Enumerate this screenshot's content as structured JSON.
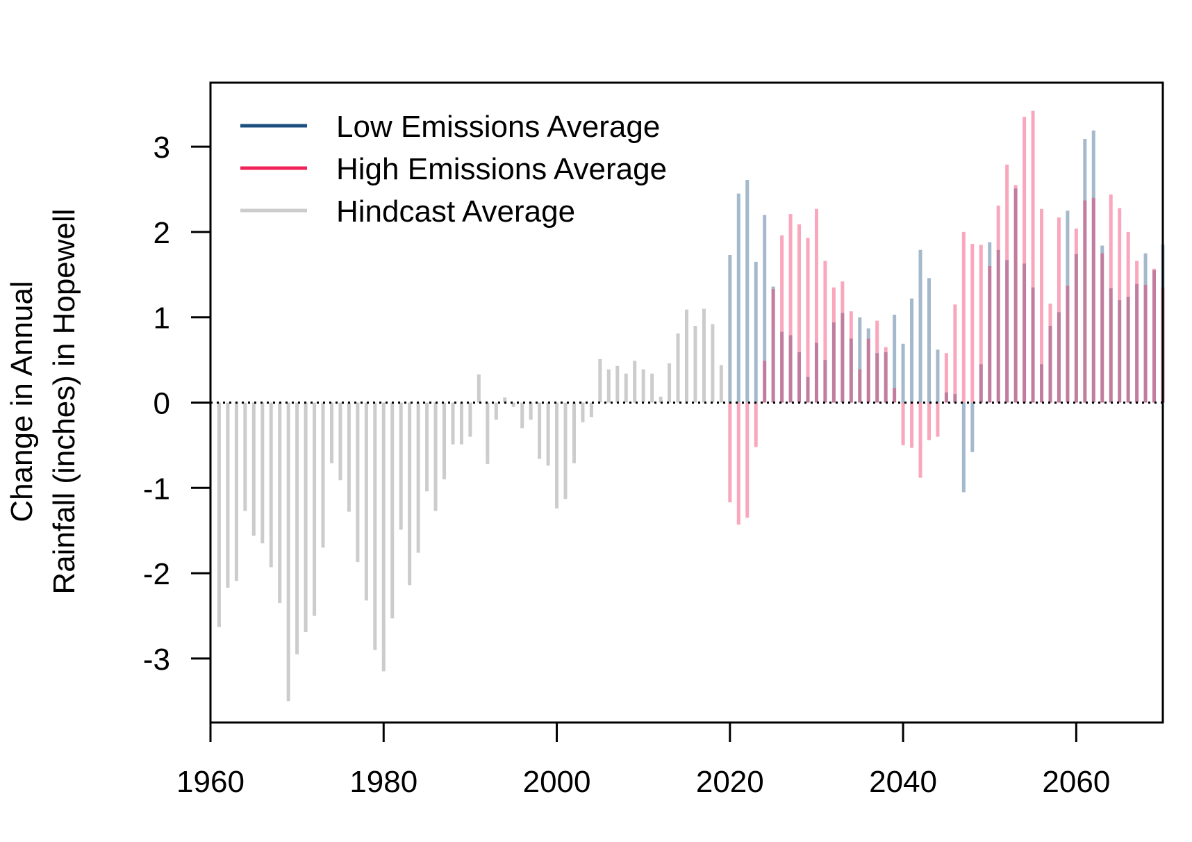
{
  "chart_data": {
    "type": "bar",
    "ylabel": [
      "Change in Annual",
      "Rainfall (inches) in Hopewell"
    ],
    "xlim": [
      1960,
      2070
    ],
    "ylim": [
      -3.75,
      3.75
    ],
    "x_ticks": [
      1960,
      1980,
      2000,
      2020,
      2040,
      2060
    ],
    "y_ticks": [
      -3,
      -2,
      -1,
      0,
      1,
      2,
      3
    ],
    "zero_line": "dotted",
    "legend_position": "top-left",
    "series": [
      {
        "name": "Low Emissions Average",
        "color": "#1b4f7f",
        "x": [
          2020,
          2021,
          2022,
          2023,
          2024,
          2025,
          2026,
          2027,
          2028,
          2029,
          2030,
          2031,
          2032,
          2033,
          2034,
          2035,
          2036,
          2037,
          2038,
          2039,
          2040,
          2041,
          2042,
          2043,
          2044,
          2045,
          2046,
          2047,
          2048,
          2049,
          2050,
          2051,
          2052,
          2053,
          2054,
          2055,
          2056,
          2057,
          2058,
          2059,
          2060,
          2061,
          2062,
          2063,
          2064,
          2065,
          2066,
          2067,
          2068,
          2069,
          2070
        ],
        "values": [
          1.73,
          2.45,
          2.61,
          1.65,
          2.2,
          1.36,
          0.83,
          0.79,
          0.59,
          0.3,
          0.7,
          0.5,
          0.94,
          1.05,
          0.75,
          1.0,
          0.87,
          0.58,
          0.59,
          1.03,
          0.69,
          1.22,
          1.79,
          1.46,
          0.62,
          0.12,
          0.1,
          -1.05,
          -0.58,
          0.45,
          1.88,
          1.79,
          1.67,
          2.51,
          1.63,
          1.35,
          0.45,
          0.9,
          1.06,
          2.25,
          1.74,
          3.09,
          3.19,
          1.84,
          1.34,
          1.2,
          1.24,
          1.39,
          1.75,
          1.55,
          1.85
        ]
      },
      {
        "name": "High Emissions Average",
        "color": "#f0245a",
        "x": [
          2020,
          2021,
          2022,
          2023,
          2024,
          2025,
          2026,
          2027,
          2028,
          2029,
          2030,
          2031,
          2032,
          2033,
          2034,
          2035,
          2036,
          2037,
          2038,
          2039,
          2040,
          2041,
          2042,
          2043,
          2044,
          2045,
          2046,
          2047,
          2048,
          2049,
          2050,
          2051,
          2052,
          2053,
          2054,
          2055,
          2056,
          2057,
          2058,
          2059,
          2060,
          2061,
          2062,
          2063,
          2064,
          2065,
          2066,
          2067,
          2068,
          2069,
          2070
        ],
        "values": [
          -1.17,
          -1.43,
          -1.35,
          -0.52,
          0.49,
          1.33,
          1.96,
          2.21,
          2.09,
          1.93,
          2.27,
          1.66,
          1.35,
          1.42,
          1.07,
          0.39,
          0.75,
          0.96,
          0.65,
          0.17,
          -0.5,
          -0.53,
          -0.88,
          -0.44,
          -0.4,
          0.58,
          1.15,
          2.0,
          1.86,
          1.85,
          1.6,
          2.31,
          2.79,
          2.55,
          3.35,
          3.42,
          2.27,
          1.16,
          2.17,
          1.37,
          2.04,
          2.37,
          2.4,
          1.75,
          2.44,
          2.28,
          2.0,
          1.66,
          1.38,
          1.57,
          1.35
        ]
      },
      {
        "name": "Hindcast Average",
        "color": "#cccccc",
        "x": [
          1961,
          1962,
          1963,
          1964,
          1965,
          1966,
          1967,
          1968,
          1969,
          1970,
          1971,
          1972,
          1973,
          1974,
          1975,
          1976,
          1977,
          1978,
          1979,
          1980,
          1981,
          1982,
          1983,
          1984,
          1985,
          1986,
          1987,
          1988,
          1989,
          1990,
          1991,
          1992,
          1993,
          1994,
          1995,
          1996,
          1997,
          1998,
          1999,
          2000,
          2001,
          2002,
          2003,
          2004,
          2005,
          2006,
          2007,
          2008,
          2009,
          2010,
          2011,
          2012,
          2013,
          2014,
          2015,
          2016,
          2017,
          2018,
          2019
        ],
        "values": [
          -2.63,
          -2.17,
          -2.09,
          -1.27,
          -1.56,
          -1.65,
          -1.93,
          -2.35,
          -3.5,
          -2.95,
          -2.69,
          -2.5,
          -1.7,
          -0.71,
          -0.91,
          -1.28,
          -1.87,
          -2.32,
          -2.9,
          -3.15,
          -2.53,
          -1.49,
          -2.14,
          -1.76,
          -1.04,
          -1.27,
          -0.9,
          -0.49,
          -0.49,
          -0.4,
          0.33,
          -0.72,
          -0.2,
          0.06,
          -0.05,
          -0.3,
          -0.2,
          -0.66,
          -0.74,
          -1.24,
          -1.13,
          -0.71,
          -0.23,
          -0.17,
          0.51,
          0.39,
          0.43,
          0.34,
          0.49,
          0.39,
          0.34,
          0.07,
          0.46,
          0.81,
          1.09,
          0.9,
          1.1,
          0.92,
          0.44
        ]
      }
    ]
  }
}
